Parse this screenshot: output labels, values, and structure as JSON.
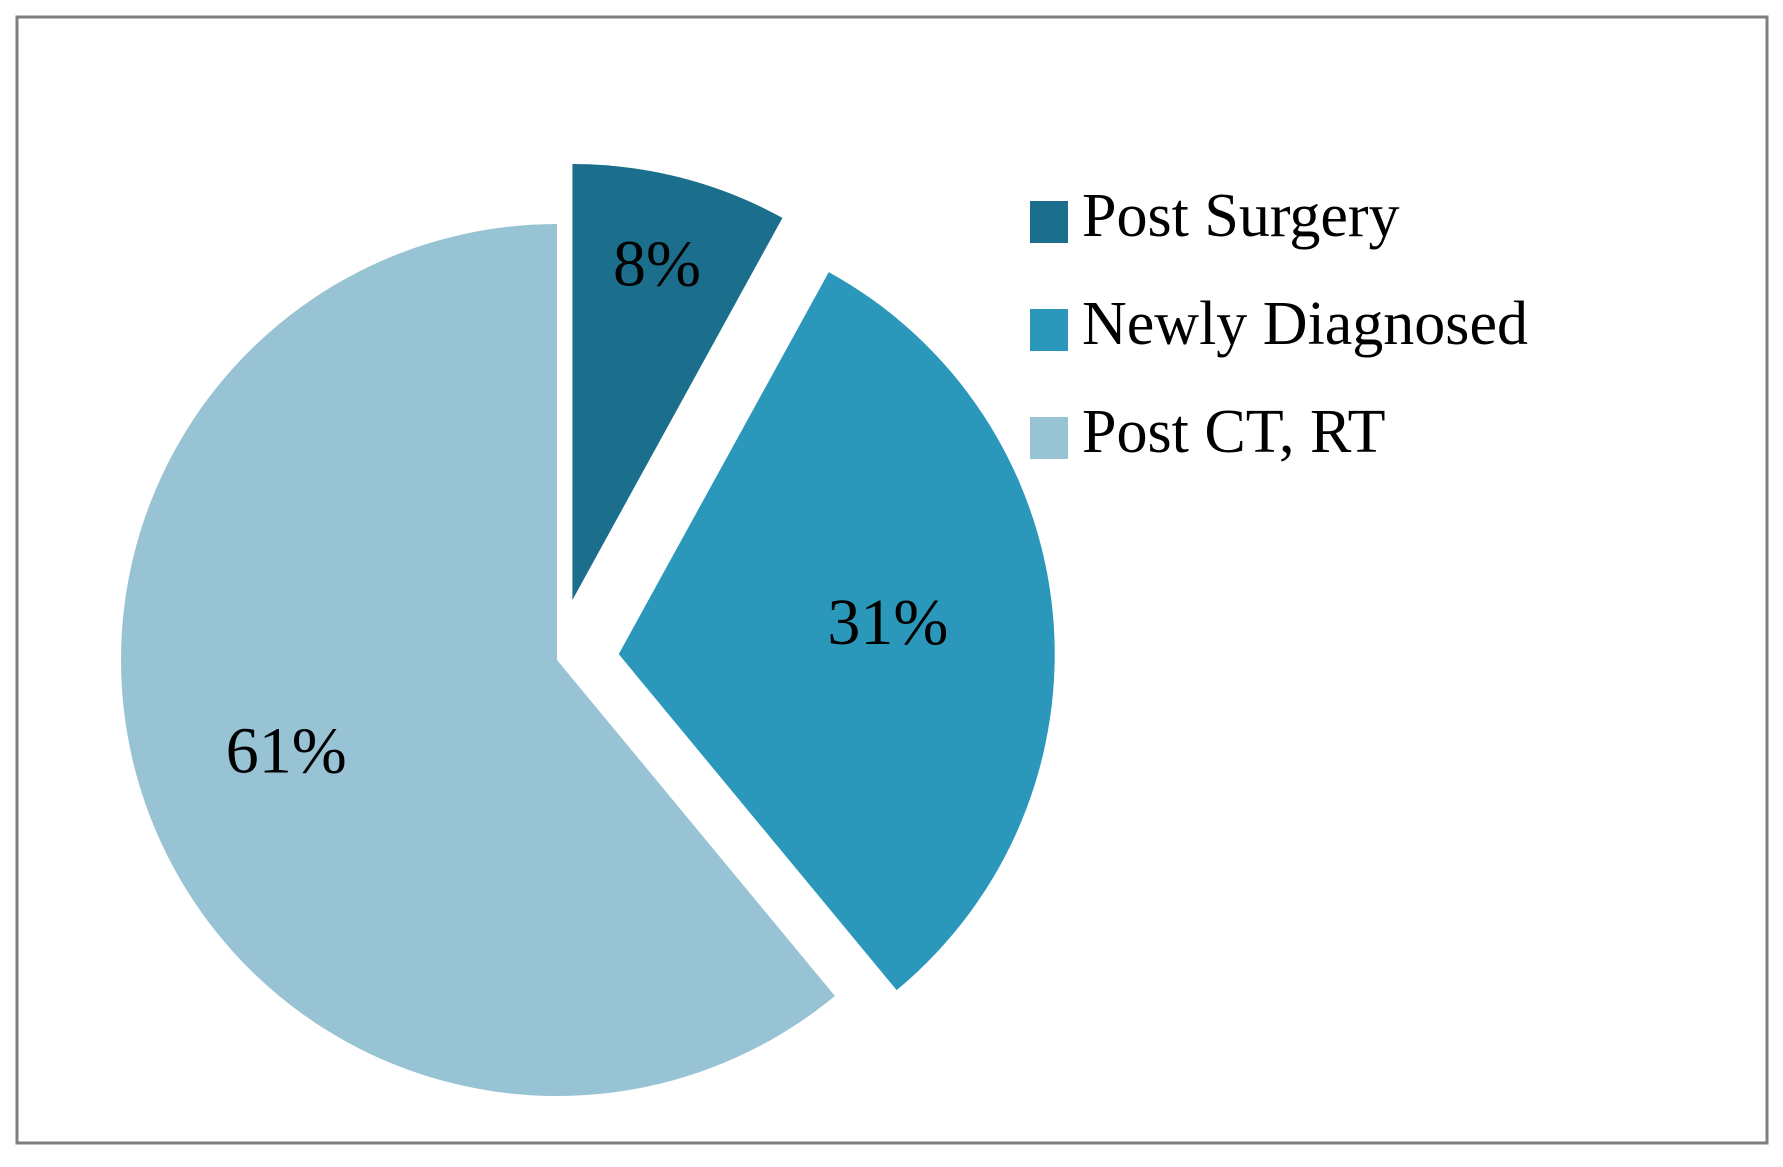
{
  "chart_data": {
    "type": "pie",
    "categories": [
      "Post Surgery",
      "Newly Diagnosed",
      "Post CT, RT"
    ],
    "values": [
      8,
      31,
      61
    ],
    "value_labels": [
      "8%",
      "31%",
      "61%"
    ],
    "colors": [
      "#1b6f8c",
      "#2b98bb",
      "#97c3d4"
    ],
    "legend": "right"
  }
}
